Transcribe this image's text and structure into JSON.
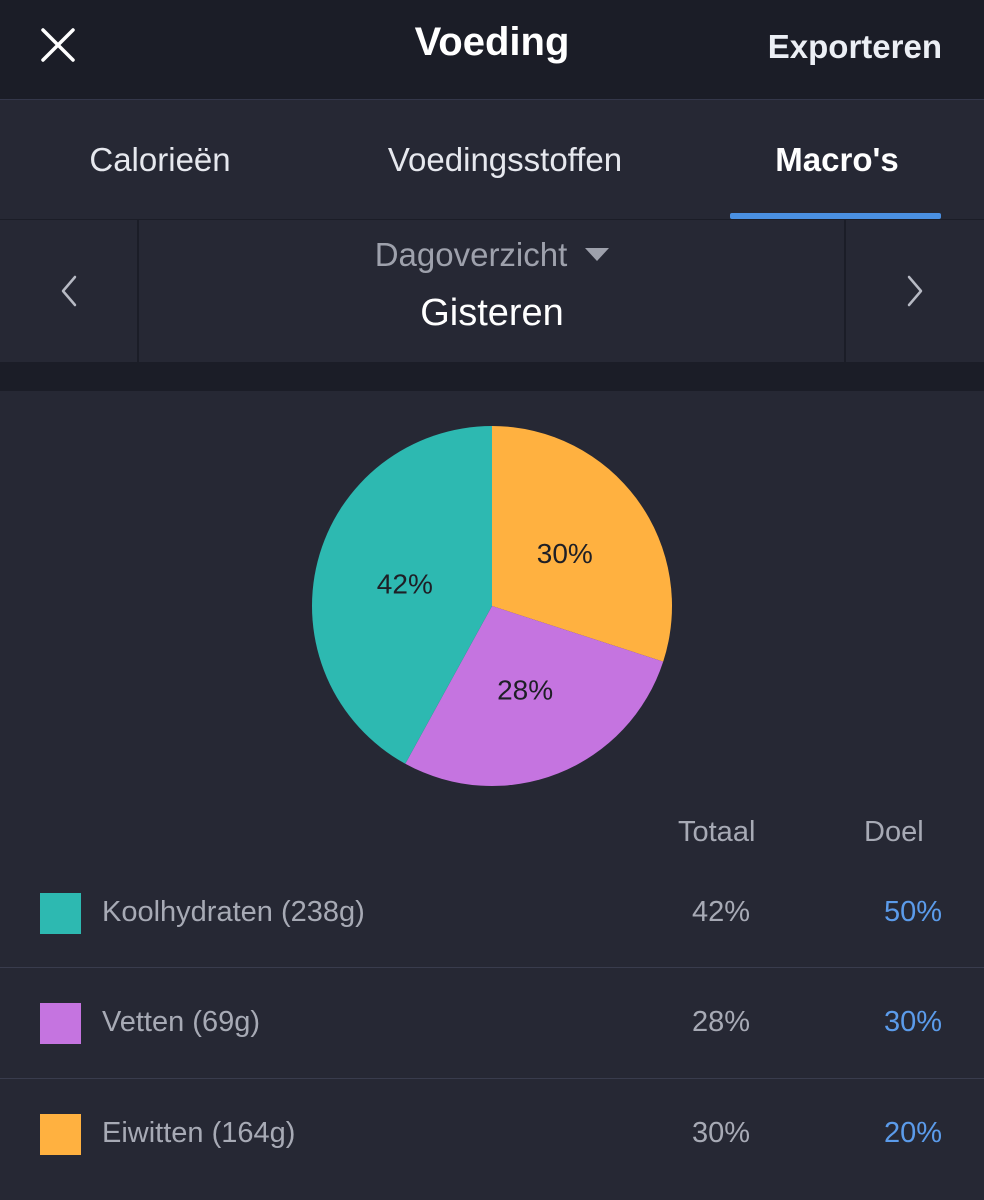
{
  "header": {
    "close_icon": "close-icon",
    "title": "Voeding",
    "export_label": "Exporteren"
  },
  "tabs": [
    {
      "label": "Calorieën",
      "active": false
    },
    {
      "label": "Voedingsstoffen",
      "active": false
    },
    {
      "label": "Macro's",
      "active": true
    }
  ],
  "date_nav": {
    "prev_icon": "chevron-left-icon",
    "next_icon": "chevron-right-icon",
    "period_label": "Dagoverzicht",
    "dropdown_icon": "caret-down-icon",
    "date_label": "Gisteren"
  },
  "chart_data": {
    "type": "pie",
    "slices": [
      {
        "name": "Eiwitten",
        "value": 30,
        "label": "30%",
        "color": "#ffb140"
      },
      {
        "name": "Vetten",
        "value": 28,
        "label": "28%",
        "color": "#c574e0"
      },
      {
        "name": "Koolhydraten",
        "value": 42,
        "label": "42%",
        "color": "#2db9b1"
      }
    ]
  },
  "table": {
    "headers": {
      "total": "Totaal",
      "goal": "Doel"
    },
    "rows": [
      {
        "label": "Koolhydraten (238g)",
        "total": "42%",
        "goal": "50%",
        "color": "#2db9b1"
      },
      {
        "label": "Vetten (69g)",
        "total": "28%",
        "goal": "30%",
        "color": "#c574e0"
      },
      {
        "label": "Eiwitten (164g)",
        "total": "30%",
        "goal": "20%",
        "color": "#ffb140"
      }
    ]
  },
  "colors": {
    "background": "#262834",
    "header_background": "#1b1d27",
    "accent": "#4a90e2",
    "goal_text": "#5b9bea"
  }
}
